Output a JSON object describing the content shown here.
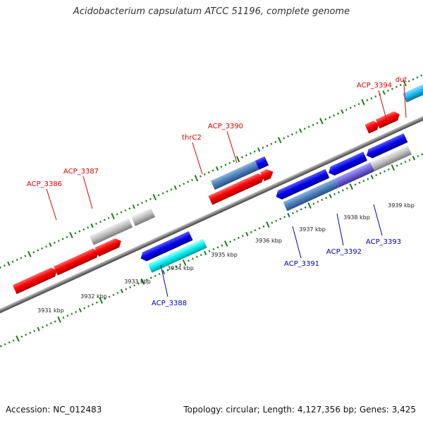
{
  "title": "Acidobacterium capsulatum ATCC 51196, complete genome",
  "footer": {
    "accession": "Accession: NC_012483",
    "topology": "Topology: circular; Length: 4,127,356 bp; Genes: 3,425"
  },
  "colors": {
    "forward_cds": "#ff0000",
    "reverse_cds": "#0000ee",
    "gray_cds": "#b8b8b8",
    "steel_cds": "#4a7fb8",
    "cyan_cds": "#00f0f0",
    "sky_cds": "#18b8f0",
    "violet_cds": "#7060d8",
    "backbone": "#808080",
    "tick": "#1f7a1f",
    "forward_label": "#dd0000",
    "reverse_label": "#0000bb"
  },
  "scale_labels": [
    "3931 kbp",
    "3932 kbp",
    "3933 kbp",
    "3934 kbp",
    "3935 kbp",
    "3936 kbp",
    "3937 kbp",
    "3938 kbp",
    "3939 kbp"
  ],
  "gene_labels": {
    "forward": [
      "ACP_3386",
      "ACP_3387",
      "thrC2",
      "ACP_3390",
      "ACP_3394",
      "dut"
    ],
    "reverse": [
      "ACP_3388",
      "ACP_3391",
      "ACP_3392",
      "ACP_3393"
    ]
  }
}
